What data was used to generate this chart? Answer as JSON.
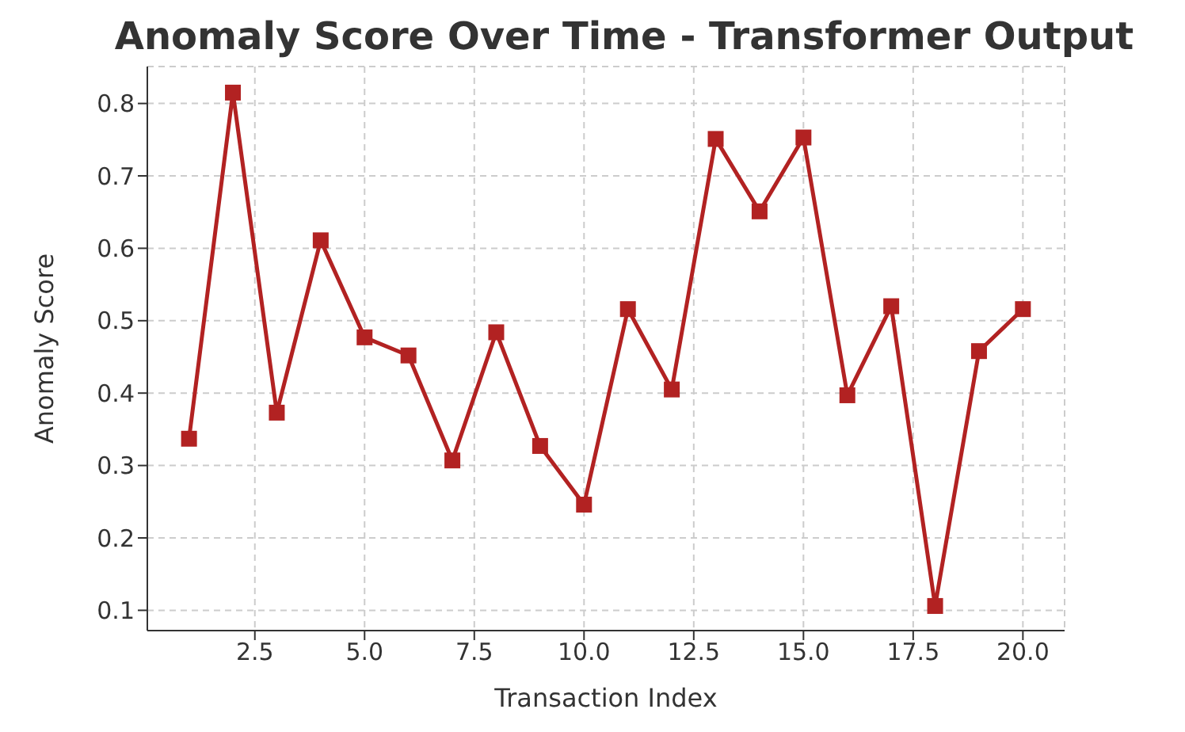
{
  "chart_data": {
    "type": "line",
    "title": "Anomaly Score Over Time - Transformer Output",
    "xlabel": "Transaction Index",
    "ylabel": "Anomaly Score",
    "x": [
      1,
      2,
      3,
      4,
      5,
      6,
      7,
      8,
      9,
      10,
      11,
      12,
      13,
      14,
      15,
      16,
      17,
      18,
      19,
      20
    ],
    "series": [
      {
        "color": "#b22222",
        "values": [
          0.337,
          0.815,
          0.373,
          0.611,
          0.477,
          0.452,
          0.307,
          0.484,
          0.327,
          0.246,
          0.516,
          0.405,
          0.751,
          0.651,
          0.753,
          0.397,
          0.52,
          0.106,
          0.458,
          0.516
        ]
      }
    ],
    "xlim": [
      0.05,
      20.95
    ],
    "xticks": [
      {
        "value": 2.5,
        "label": "2.5"
      },
      {
        "value": 5,
        "label": "5.0"
      },
      {
        "value": 7.5,
        "label": "7.5"
      },
      {
        "value": 10,
        "label": "10.0"
      },
      {
        "value": 12.5,
        "label": "12.5"
      },
      {
        "value": 15,
        "label": "15.0"
      },
      {
        "value": 17.5,
        "label": "17.5"
      },
      {
        "value": 20,
        "label": "20.0"
      }
    ],
    "ylim": [
      0.072,
      0.851
    ],
    "yticks": [
      0.1,
      0.2,
      0.3,
      0.4,
      0.5,
      0.6,
      0.7,
      0.8
    ],
    "grid": true,
    "marker": "square",
    "line_style": "solid",
    "legend": false
  }
}
